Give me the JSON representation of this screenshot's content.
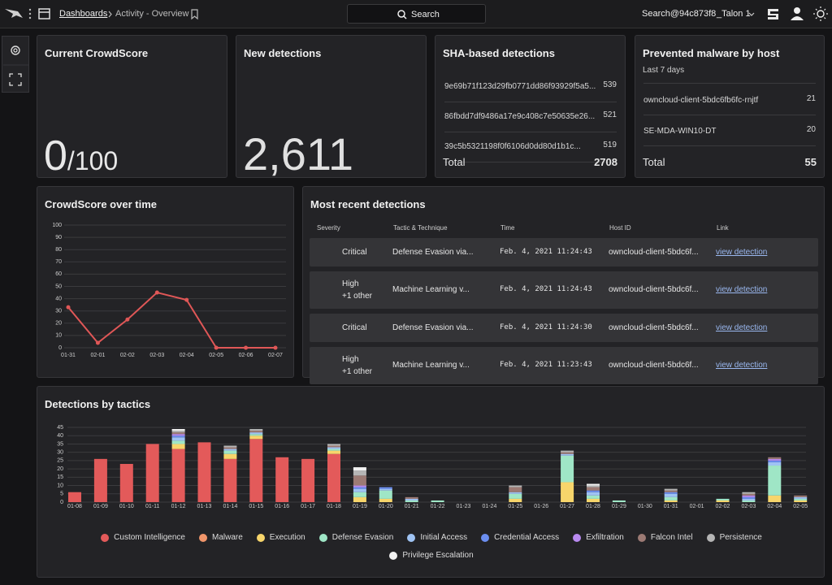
{
  "header": {
    "nav": "Dashboards",
    "breadcrumb": "Activity - Overview",
    "search": "Search",
    "user": "Search@94c873f8",
    "tenant": "_Talon 1"
  },
  "crowdscore": {
    "title": "Current CrowdScore",
    "score": 0,
    "max_label": "/100"
  },
  "new_detections": {
    "title": "New detections",
    "value": "2,611"
  },
  "sha": {
    "title": "SHA-based detections",
    "rows": [
      {
        "name": "9e69b71f123d29fb0771dd86f93929f5a5...",
        "count": 539
      },
      {
        "name": "86fbdd7df9486a17e9c408c7e50635e26...",
        "count": 521
      },
      {
        "name": "39c5b5321198f0f6106d0dd80d1b1c...",
        "count": 519
      }
    ],
    "total_label": "Total",
    "total": 2708
  },
  "prevented": {
    "title": "Prevented malware by host",
    "subtitle": "Last 7 days",
    "rows": [
      {
        "name": "owncloud-client-5bdc6fb6fc-rnjtf",
        "count": 21
      },
      {
        "name": "SE-MDA-WIN10-DT",
        "count": 20
      }
    ],
    "total_label": "Total",
    "total": 55
  },
  "crowdscore_chart": {
    "type": "line",
    "title": "CrowdScore over time",
    "categories": [
      "01-31",
      "02-01",
      "02-02",
      "02-03",
      "02-04",
      "02-05",
      "02-06",
      "02-07"
    ],
    "values": [
      33,
      4,
      23,
      45,
      39,
      0,
      0,
      0
    ],
    "color": "#e05757",
    "ylim": [
      0,
      100
    ],
    "yticks": [
      0,
      10,
      20,
      30,
      40,
      50,
      60,
      70,
      80,
      90,
      100
    ],
    "grid": true
  },
  "recent": {
    "title": "Most recent detections",
    "columns": [
      "Severity",
      "Tactic & Technique",
      "Time",
      "Host ID",
      "Link"
    ],
    "severity_colors": {
      "Critical": "#e5484d",
      "High": "#3fcf9c"
    },
    "rows": [
      {
        "severity": "Critical",
        "tactic": "Defense Evasion via...",
        "time": "Feb. 4, 2021 11:24:43",
        "host": "owncloud-client-5bdc6f...",
        "link": "view detection"
      },
      {
        "severity": "High",
        "extra": "+1 other",
        "tactic": "Machine Learning v...",
        "time": "Feb. 4, 2021 11:24:43",
        "host": "owncloud-client-5bdc6f...",
        "link": "view detection"
      },
      {
        "severity": "Critical",
        "tactic": "Defense Evasion via...",
        "time": "Feb. 4, 2021 11:24:30",
        "host": "owncloud-client-5bdc6f...",
        "link": "view detection"
      },
      {
        "severity": "High",
        "extra": "+1 other",
        "tactic": "Machine Learning v...",
        "time": "Feb. 4, 2021 11:23:43",
        "host": "owncloud-client-5bdc6f...",
        "link": "view detection"
      }
    ]
  },
  "tactics_chart": {
    "type": "bar",
    "stacked": true,
    "title": "Detections by tactics",
    "categories": [
      "01-08",
      "01-09",
      "01-10",
      "01-11",
      "01-12",
      "01-13",
      "01-14",
      "01-15",
      "01-16",
      "01-17",
      "01-18",
      "01-19",
      "01-20",
      "01-21",
      "01-22",
      "01-23",
      "01-24",
      "01-25",
      "01-26",
      "01-27",
      "01-28",
      "01-29",
      "01-30",
      "01-31",
      "02-01",
      "02-02",
      "02-03",
      "02-04",
      "02-05"
    ],
    "ylim": [
      0,
      45
    ],
    "yticks": [
      0,
      5,
      10,
      15,
      20,
      25,
      30,
      35,
      40,
      45
    ],
    "grid": true,
    "series": [
      {
        "name": "Custom Intelligence",
        "color": "#e35a5a",
        "values": [
          6,
          26,
          23,
          35,
          32,
          36,
          26,
          38,
          27,
          26,
          29,
          0,
          0,
          0,
          0,
          0,
          0,
          0,
          0,
          0,
          0,
          0,
          0,
          0,
          0,
          0,
          0,
          0,
          0
        ]
      },
      {
        "name": "Malware",
        "color": "#f0956a",
        "values": [
          0,
          0,
          0,
          0,
          0,
          0,
          0,
          0,
          0,
          0,
          0,
          0,
          0,
          0,
          0,
          0,
          0,
          0,
          0,
          0,
          0,
          0,
          0,
          0,
          0,
          0,
          0,
          0,
          0
        ]
      },
      {
        "name": "Execution",
        "color": "#f7d56b",
        "values": [
          0,
          0,
          0,
          0,
          3,
          0,
          3,
          2,
          0,
          0,
          2,
          3,
          2,
          0,
          0,
          0,
          0,
          2,
          0,
          12,
          2,
          0,
          0,
          1,
          0,
          1,
          0,
          4,
          1
        ]
      },
      {
        "name": "Defense Evasion",
        "color": "#9fe6c6",
        "values": [
          0,
          0,
          0,
          0,
          2,
          0,
          2,
          1,
          0,
          0,
          1,
          3,
          5,
          1,
          1,
          0,
          0,
          3,
          0,
          16,
          2,
          1,
          0,
          2,
          0,
          1,
          1,
          18,
          1
        ]
      },
      {
        "name": "Initial Access",
        "color": "#9fc3f3",
        "values": [
          0,
          0,
          0,
          0,
          2,
          0,
          1,
          1,
          0,
          0,
          1,
          2,
          1,
          1,
          0,
          0,
          0,
          1,
          0,
          1,
          2,
          0,
          0,
          2,
          0,
          0,
          1,
          2,
          1
        ]
      },
      {
        "name": "Credential Access",
        "color": "#6b8ef0",
        "values": [
          0,
          0,
          0,
          0,
          1,
          0,
          0,
          0,
          0,
          0,
          0,
          1,
          1,
          0,
          0,
          0,
          0,
          0,
          0,
          0,
          1,
          0,
          0,
          1,
          0,
          0,
          1,
          1,
          0
        ]
      },
      {
        "name": "Exfiltration",
        "color": "#b98af0",
        "values": [
          0,
          0,
          0,
          0,
          1,
          0,
          0,
          0,
          0,
          0,
          0,
          1,
          0,
          0,
          0,
          0,
          0,
          0,
          0,
          0,
          0,
          0,
          0,
          0,
          0,
          0,
          1,
          1,
          0
        ]
      },
      {
        "name": "Falcon Intel",
        "color": "#9c7a74",
        "values": [
          0,
          0,
          0,
          0,
          1,
          0,
          1,
          1,
          0,
          0,
          1,
          6,
          0,
          1,
          0,
          0,
          0,
          3,
          0,
          1,
          2,
          0,
          0,
          1,
          0,
          0,
          1,
          1,
          1
        ]
      },
      {
        "name": "Persistence",
        "color": "#b5b5b5",
        "values": [
          0,
          0,
          0,
          0,
          1,
          0,
          1,
          1,
          0,
          0,
          1,
          3,
          0,
          0,
          0,
          0,
          0,
          1,
          0,
          1,
          1,
          0,
          0,
          1,
          0,
          0,
          1,
          0,
          0
        ]
      },
      {
        "name": "Privilege Escalation",
        "color": "#f2f2f2",
        "values": [
          0,
          0,
          0,
          0,
          1,
          0,
          0,
          0,
          0,
          0,
          0,
          2,
          0,
          0,
          0,
          0,
          0,
          0,
          0,
          0,
          1,
          0,
          0,
          0,
          0,
          0,
          0,
          0,
          0
        ]
      }
    ]
  }
}
